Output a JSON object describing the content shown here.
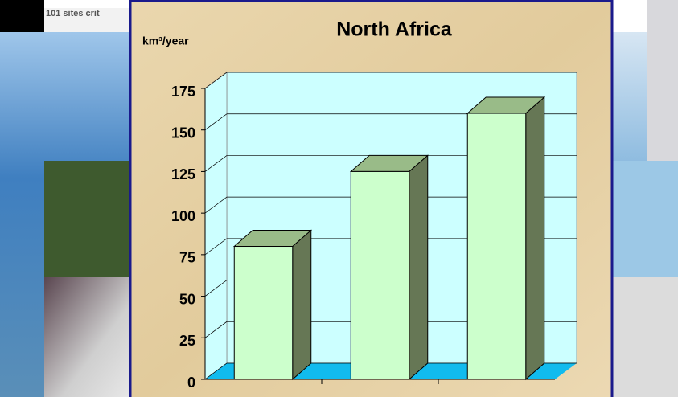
{
  "header_text": "101 sites crit",
  "chart_data": {
    "type": "bar",
    "title": "North Africa",
    "y_label": "km³/year",
    "categories": [
      null,
      null,
      null
    ],
    "values": [
      80,
      125,
      160
    ],
    "ylim": [
      0,
      175
    ],
    "yticks": [
      0,
      25,
      50,
      75,
      100,
      125,
      150,
      175
    ],
    "grid": true,
    "color": "#ccffcc",
    "top_color": "#99bb88",
    "side_color": "#667755",
    "wall_color": "#ccffff",
    "floor_color": "#11bbee"
  }
}
